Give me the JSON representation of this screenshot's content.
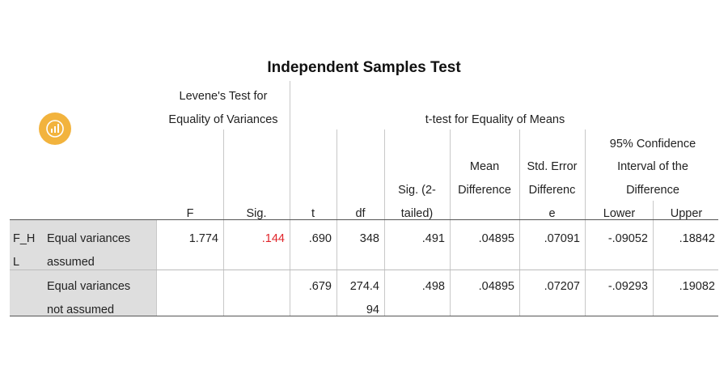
{
  "table": {
    "title": "Independent Samples Test",
    "levene_line1": "Levene's Test for",
    "levene_line2": "Equality of Variances",
    "ttest_header": "t-test for Equality of Means",
    "ci_line1": "95% Confidence",
    "ci_line2": "Interval of the",
    "ci_line3": "Difference",
    "col_F": "F",
    "col_sig": "Sig.",
    "col_t": "t",
    "col_df": "df",
    "col_sig2_line1": "Sig. (2-",
    "col_sig2_line2": "tailed)",
    "col_md_line1": "Mean",
    "col_md_line2": "Difference",
    "col_se_line1": "Std. Error",
    "col_se_line2": "Differenc",
    "col_se_line3": "e",
    "col_lower": "Lower",
    "col_upper": "Upper",
    "var_line1": "F_H",
    "var_line2": "L",
    "rows": [
      {
        "label_line1": "Equal variances",
        "label_line2": "assumed",
        "F": "1.774",
        "sig": ".144",
        "t": ".690",
        "df": "348",
        "sig2": ".491",
        "md": ".04895",
        "se": ".07091",
        "lower": "-.09052",
        "upper": ".18842"
      },
      {
        "label_line1": "Equal variances",
        "label_line2": "not assumed",
        "t": ".679",
        "df_line1": "274.4",
        "df_line2": "94",
        "sig2": ".498",
        "md": ".04895",
        "se": ".07207",
        "lower": "-.09293",
        "upper": ".19082"
      }
    ]
  },
  "logo_icon": "chart-badge-icon",
  "colors": {
    "accent_logo": "#f2b33d",
    "highlight_sig": "#e0242a",
    "row_label_bg": "#dedede"
  }
}
